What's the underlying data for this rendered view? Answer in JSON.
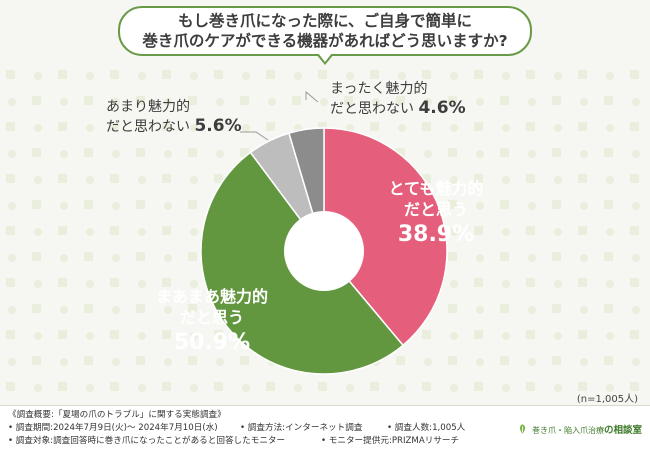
{
  "title": {
    "line1": "もし巻き爪になった際に、ご自身で簡単に",
    "line2": "巻き爪のケアができる機器があればどう思いますか?"
  },
  "colors": {
    "red": "#e55f7c",
    "green": "#63973f",
    "lightgray": "#bdbdbd",
    "darkgray": "#8c8c8c",
    "accent": "#6a9a48"
  },
  "chart_data": {
    "type": "pie",
    "style": "donut",
    "title": "もし巻き爪になった際に、ご自身で簡単に巻き爪のケアができる機器があればどう思いますか?",
    "unit": "%",
    "slices": [
      {
        "label_line1": "とても魅力的",
        "label_line2": "だと思う",
        "value": 38.9,
        "display": "38.9%"
      },
      {
        "label_line1": "まあまあ魅力的",
        "label_line2": "だと思う",
        "value": 50.9,
        "display": "50.9%"
      },
      {
        "label_line1": "あまり魅力的",
        "label_line2": "だと思わない",
        "value": 5.6,
        "display": "5.6%"
      },
      {
        "label_line1": "まったく魅力的",
        "label_line2": "だと思わない",
        "value": 4.6,
        "display": "4.6%"
      }
    ],
    "sample_size": "(n=1,005人)"
  },
  "footer": {
    "summary": "《調査概要:「夏場の爪のトラブル」に関する実態調査》",
    "period": "• 調査期間:2024年7月9日(火)〜 2024年7月10日(水)",
    "method": "• 調査方法:インターネット調査",
    "count": "• 調査人数:1,005人",
    "target": "• 調査対象:調査回答時に巻き爪になったことがあると回答したモニター",
    "provider": "• モニター提供元:PRIZMAリサーチ",
    "logo_small": "巻き爪・陥入爪治療",
    "logo_big": "の相談室"
  }
}
